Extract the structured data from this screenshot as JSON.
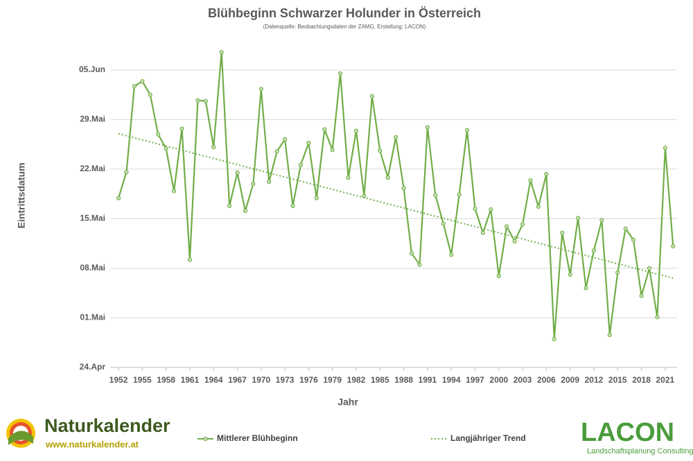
{
  "chart_data": {
    "type": "line",
    "title": "Blühbeginn Schwarzer Holunder in Österreich",
    "subtitle": "(Datenquelle: Beobachtungsdaten der ZAMG,  Erstellung: LACON)",
    "x_label": "Jahr",
    "y_label": "Eintrittsdatum",
    "x": [
      1952,
      1953,
      1954,
      1955,
      1956,
      1957,
      1958,
      1959,
      1960,
      1961,
      1962,
      1963,
      1964,
      1965,
      1966,
      1967,
      1968,
      1969,
      1970,
      1971,
      1972,
      1973,
      1974,
      1975,
      1976,
      1977,
      1978,
      1979,
      1980,
      1981,
      1982,
      1983,
      1984,
      1985,
      1986,
      1987,
      1988,
      1989,
      1990,
      1991,
      1992,
      1993,
      1994,
      1995,
      1996,
      1997,
      1998,
      1999,
      2000,
      2001,
      2002,
      2003,
      2004,
      2005,
      2006,
      2007,
      2008,
      2009,
      2010,
      2011,
      2012,
      2013,
      2014,
      2015,
      2016,
      2017,
      2018,
      2019,
      2020,
      2021,
      2022
    ],
    "series": [
      {
        "name": "Mittlerer Blühbeginn",
        "color": "#70ad47",
        "style": "solid",
        "values": [
          137.9,
          141.6,
          153.7,
          154.4,
          152.5,
          146.9,
          144.9,
          138.9,
          147.7,
          129.2,
          151.7,
          151.6,
          145.1,
          158.5,
          136.8,
          141.5,
          136.1,
          139.9,
          153.3,
          140.2,
          144.5,
          146.2,
          136.8,
          142.6,
          145.7,
          137.9,
          147.6,
          144.7,
          155.5,
          140.8,
          147.4,
          138.2,
          152.3,
          144.6,
          140.8,
          146.5,
          139.3,
          130.1,
          128.5,
          147.9,
          138.3,
          134.3,
          129.9,
          138.4,
          147.5,
          136.4,
          133.0,
          136.3,
          126.9,
          133.9,
          131.8,
          134.2,
          140.4,
          136.7,
          141.3,
          118.0,
          133.0,
          127.1,
          135.1,
          125.2,
          130.5,
          134.8,
          118.6,
          127.4,
          133.6,
          132.0,
          124.1,
          128.0,
          121.1,
          145.0,
          131.1
        ]
      },
      {
        "name": "Langjähriger Trend",
        "color": "#70ad47",
        "style": "dotted",
        "x": [
          1952,
          2022
        ],
        "values": [
          147.0,
          126.6
        ]
      }
    ],
    "xlim": [
      1951,
      2022.5
    ],
    "ylim": [
      114,
      160
    ],
    "xticks": [
      1952,
      1955,
      1958,
      1961,
      1964,
      1967,
      1970,
      1973,
      1976,
      1979,
      1982,
      1985,
      1988,
      1991,
      1994,
      1997,
      2000,
      2003,
      2006,
      2009,
      2012,
      2015,
      2018,
      2021
    ],
    "yticks": [
      {
        "value": 114,
        "label": "24.Apr"
      },
      {
        "value": 121,
        "label": "01.Mai"
      },
      {
        "value": 128,
        "label": "08.Mai"
      },
      {
        "value": 135,
        "label": "15.Mai"
      },
      {
        "value": 142,
        "label": "22.Mai"
      },
      {
        "value": 149,
        "label": "29.Mai"
      },
      {
        "value": 156,
        "label": "05.Jun"
      }
    ],
    "grid": true,
    "legend": "bottom"
  },
  "branding": {
    "left_name": "Naturkalender",
    "left_url": "www.naturkalender.at",
    "right_name": "LACON",
    "right_sub": "Landschaftsplanung Consulting"
  }
}
